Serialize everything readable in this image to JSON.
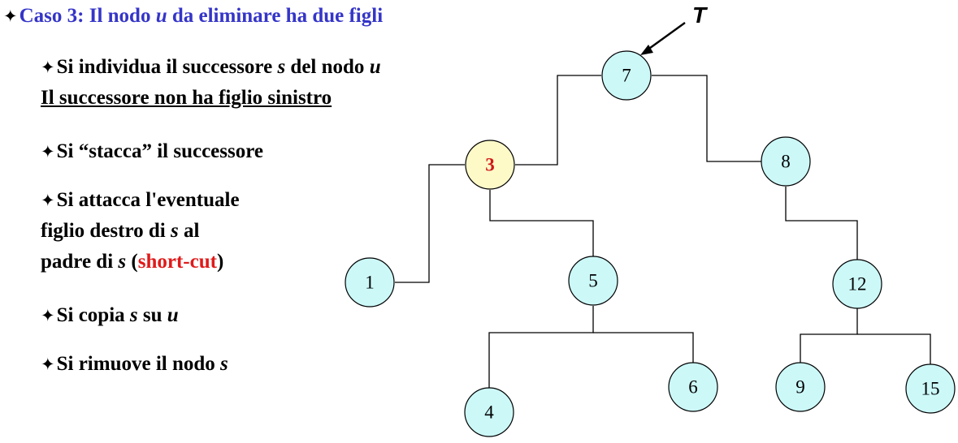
{
  "heading": {
    "prefix": "Caso 3: Il nodo ",
    "var": "u",
    "suffix": " da eliminare  ha due figli"
  },
  "bullets": {
    "b1": {
      "a": "Si individua il successore ",
      "s": "s",
      "b": " del nodo ",
      "u": "u",
      "note": "Il successore non ha figlio sinistro"
    },
    "b2": {
      "text": "Si “stacca” il successore"
    },
    "b3": {
      "line1": "Si attacca l'eventuale",
      "line2a": "figlio destro di ",
      "s1": "s",
      "line2b": " al",
      "line3a": "padre di ",
      "s2": "s",
      "line3b": "  (",
      "shortcut": "short-cut",
      "line3c": ")"
    },
    "b4": {
      "a": "Si copia ",
      "s": "s",
      "b": " su ",
      "u": "u"
    },
    "b5": {
      "a": "Si rimuove il nodo ",
      "s": "s"
    }
  },
  "tree": {
    "root_label": "T",
    "nodes": [
      {
        "id": "n7",
        "label": "7"
      },
      {
        "id": "n3",
        "label": "3",
        "highlight": true
      },
      {
        "id": "n8",
        "label": "8"
      },
      {
        "id": "n1",
        "label": "1"
      },
      {
        "id": "n5",
        "label": "5"
      },
      {
        "id": "n12",
        "label": "12"
      },
      {
        "id": "n4",
        "label": "4"
      },
      {
        "id": "n6",
        "label": "6"
      },
      {
        "id": "n9",
        "label": "9"
      },
      {
        "id": "n15",
        "label": "15"
      }
    ],
    "colors": {
      "node_fill": "#ccf8f8",
      "highlight_fill": "#fdfac8",
      "highlight_text": "#d01818",
      "heading": "#3535c8",
      "shortcut": "#e01a1a"
    }
  }
}
